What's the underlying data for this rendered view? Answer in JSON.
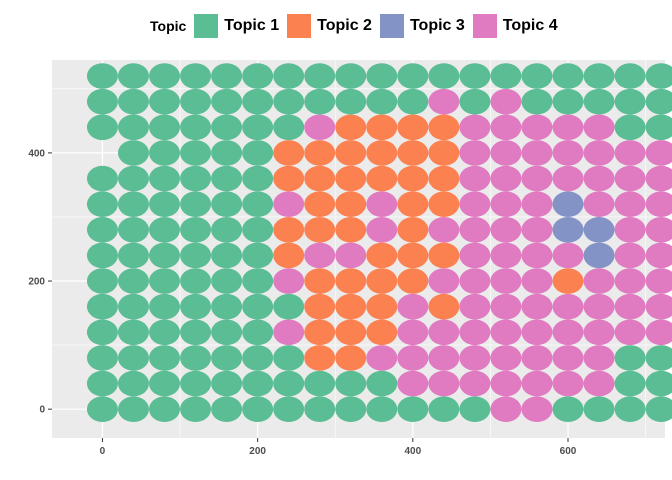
{
  "chart_data": {
    "type": "scatter",
    "legend": {
      "title": "Topic",
      "position": "top",
      "entries": [
        {
          "label": "Topic 1",
          "color": "#5BBD94"
        },
        {
          "label": "Topic 2",
          "color": "#FC8150"
        },
        {
          "label": "Topic 3",
          "color": "#8393C6"
        },
        {
          "label": "Topic 4",
          "color": "#E07AC1"
        }
      ]
    },
    "xlim": [
      -65,
      725
    ],
    "ylim": [
      -45,
      545
    ],
    "x_ticks": [
      0,
      200,
      400,
      600
    ],
    "y_ticks": [
      0,
      200,
      400
    ],
    "grid": true,
    "background": "#EBEBEB",
    "x_step": 40,
    "x_start": 0,
    "y_step": 40,
    "y_start": 0,
    "rows": [
      "1111111111111441111",
      "1111111222244441111",
      "1111112224444444411",
      "1111111424444444411",
      "1111111242444444444",
      "1111111111111111111",
      "1111111111111111111"
    ],
    "grid_rows": [
      "1111111111111111111",
      "1111111111111111111",
      "1111111111111111111",
      "1111111111111111111",
      "1111111111111111111",
      "1111111111111111111",
      "1111111111111111111",
      "1111111111111111111",
      "1111111111111111111",
      "1111111111111111111",
      "1111111111111111111",
      "1111111111111111111",
      "1111111111111111111"
    ],
    "topic_grid": [
      "1111111111111111111",
      "1111111111141411111",
      "1111111422224444411",
      "0111112222224444444",
      "1111112222224444444",
      "1111114224224443444",
      "1111112224244443344",
      "1111112442224444344",
      "1111114222244442444",
      "1111111222424444444",
      "1111114222444444444",
      "1111111224444444411",
      "1111111111444444411",
      "1111111111111441111"
    ]
  }
}
